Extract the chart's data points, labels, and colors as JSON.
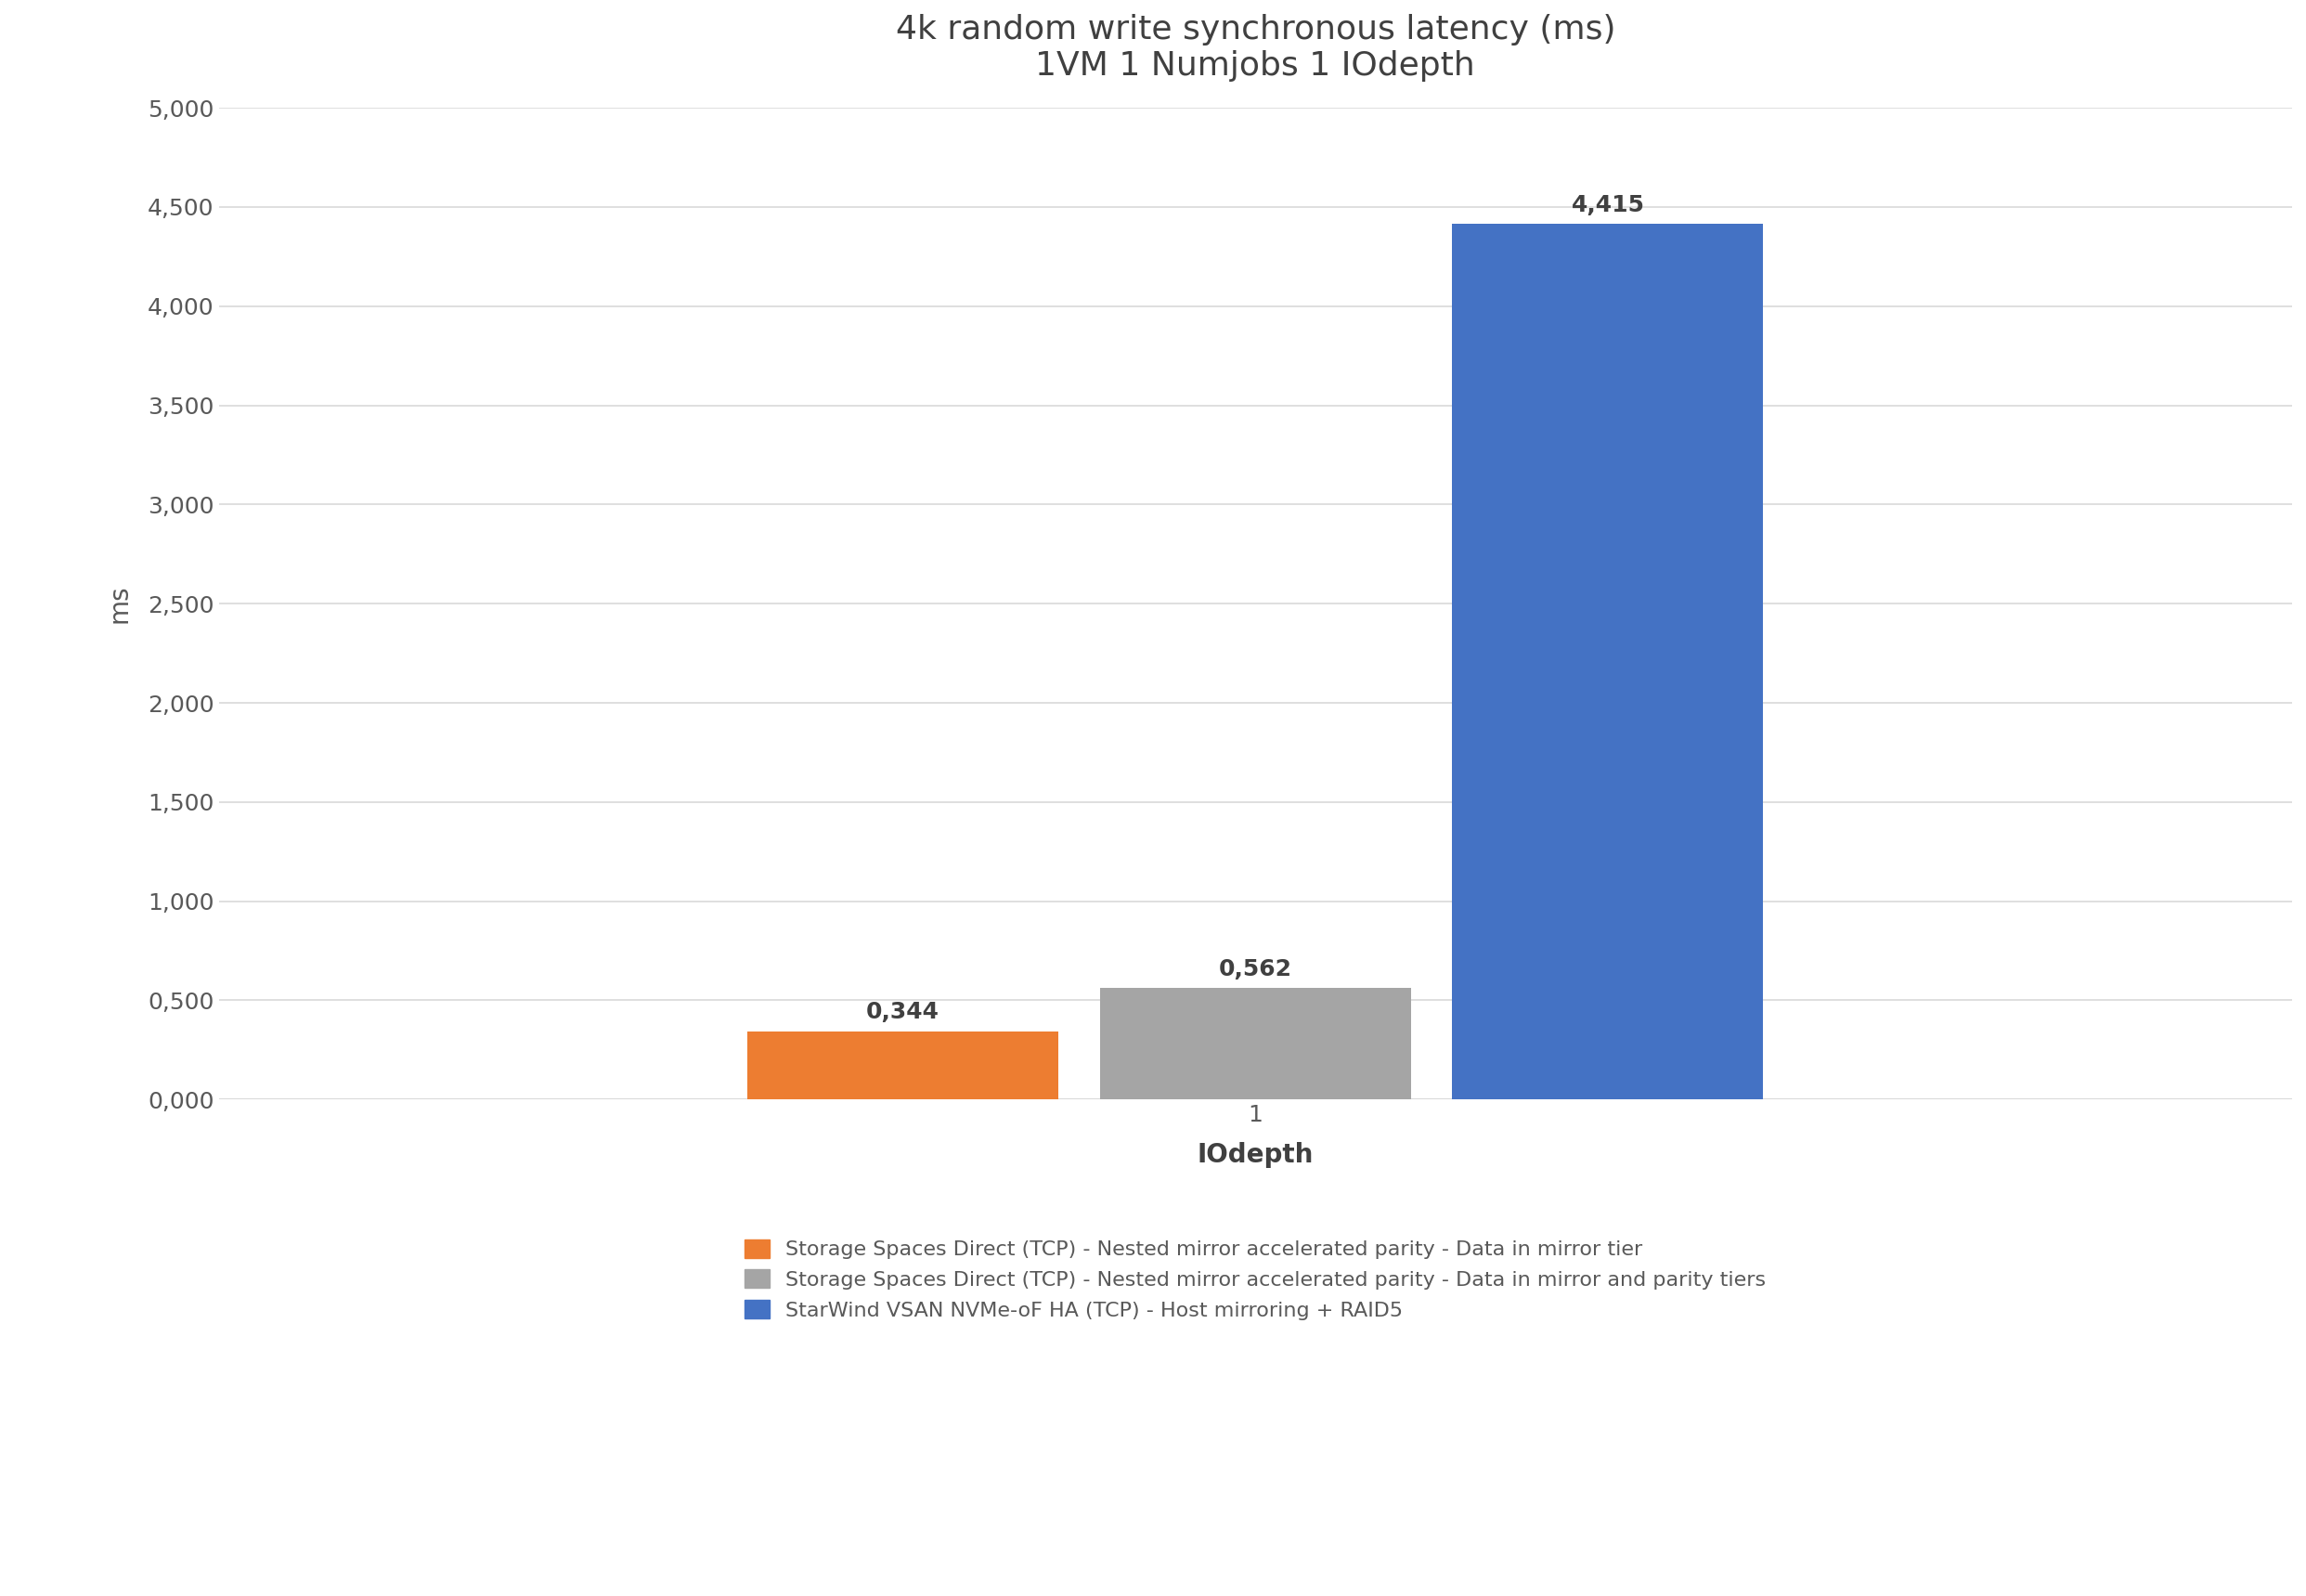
{
  "title_line1": "4k random write synchronous latency (ms)",
  "title_line2": "1VM 1 Numjobs 1 IOdepth",
  "xlabel": "IOdepth",
  "ylabel": "ms",
  "categories": [
    "1"
  ],
  "series": [
    {
      "name": "Storage Spaces Direct (TCP) - Nested mirror accelerated parity - Data in mirror tier",
      "values": [
        0.344
      ],
      "color": "#ED7D31"
    },
    {
      "name": "Storage Spaces Direct (TCP) - Nested mirror accelerated parity - Data in mirror and parity tiers",
      "values": [
        0.562
      ],
      "color": "#A5A5A5"
    },
    {
      "name": "StarWind VSAN NVMe-oF HA (TCP) - Host mirroring + RAID5",
      "values": [
        4.415
      ],
      "color": "#4472C4"
    }
  ],
  "ylim": [
    0,
    5.0
  ],
  "yticks": [
    0.0,
    0.5,
    1.0,
    1.5,
    2.0,
    2.5,
    3.0,
    3.5,
    4.0,
    4.5,
    5.0
  ],
  "ytick_labels": [
    "0,000",
    "0,500",
    "1,000",
    "1,500",
    "2,000",
    "2,500",
    "3,000",
    "3,500",
    "4,000",
    "4,500",
    "5,000"
  ],
  "background_color": "#FFFFFF",
  "grid_color": "#D9D9D9",
  "title_fontsize": 26,
  "axis_label_fontsize": 20,
  "tick_fontsize": 18,
  "legend_fontsize": 16,
  "bar_label_fontsize": 18,
  "bar_width": 0.15,
  "bar_gap": 0.02
}
